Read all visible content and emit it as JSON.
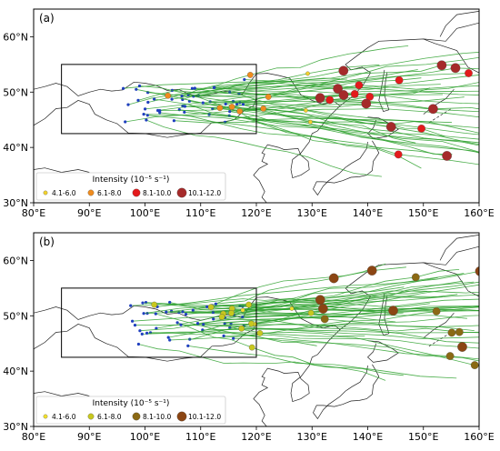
{
  "panels": [
    {
      "id": "a",
      "label": "(a)",
      "legend": {
        "title": "Intensity (10⁻⁵ s⁻¹)",
        "items": [
          {
            "label": "4.1-6.0",
            "color": "#f2d22c"
          },
          {
            "label": "6.1-8.0",
            "color": "#f08c1e"
          },
          {
            "label": "8.1-10.0",
            "color": "#e31a1c"
          },
          {
            "label": "10.1-12.0",
            "color": "#a52a2a"
          }
        ]
      },
      "track_color": "#2ca02c"
    },
    {
      "id": "b",
      "label": "(b)",
      "legend": {
        "title": "Intensity (10⁻⁵ s⁻¹)",
        "items": [
          {
            "label": "4.1-6.0",
            "color": "#f2e02c"
          },
          {
            "label": "6.1-8.0",
            "color": "#c8c81e"
          },
          {
            "label": "8.1-10.0",
            "color": "#8b6914"
          },
          {
            "label": "10.1-12.0",
            "color": "#8b4513"
          }
        ]
      },
      "track_color": "#2ca02c"
    }
  ],
  "axes": {
    "x_ticks": [
      "80°E",
      "90°E",
      "100°E",
      "110°E",
      "120°E",
      "130°E",
      "140°E",
      "150°E",
      "160°E"
    ],
    "y_ticks": [
      "30°N",
      "40°N",
      "50°N",
      "60°N"
    ],
    "lon_range": [
      80,
      160
    ],
    "lat_range": [
      30,
      65
    ]
  },
  "colors": {
    "genesis_dot": "#1f3fbf",
    "box": "#000000",
    "coast": "#222222"
  }
}
